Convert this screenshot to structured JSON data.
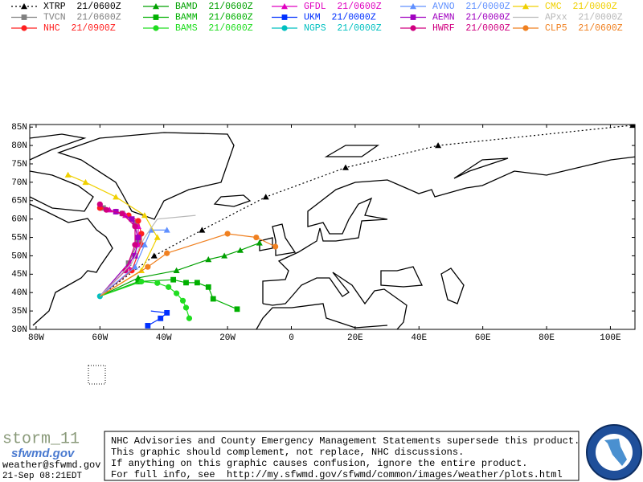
{
  "map": {
    "lonlim": [
      -82,
      107.7
    ],
    "latlim": [
      30,
      85.7
    ],
    "lon_ticks": [
      {
        "value": -80,
        "label": "80W"
      },
      {
        "value": -60,
        "label": "60W"
      },
      {
        "value": -40,
        "label": "40W"
      },
      {
        "value": -20,
        "label": "20W"
      },
      0,
      {
        "value": 20,
        "label": "20E"
      },
      {
        "value": 40,
        "label": "40E"
      },
      {
        "value": 60,
        "label": "60E"
      },
      {
        "value": 80,
        "label": "80E"
      },
      {
        "value": 100,
        "label": "100E"
      }
    ],
    "lat_ticks": [
      {
        "value": 85,
        "label": "85N"
      },
      {
        "value": 80,
        "label": "80N"
      },
      {
        "value": 75,
        "label": "75N"
      },
      {
        "value": 70,
        "label": "70N"
      },
      {
        "value": 65,
        "label": "65N"
      },
      {
        "value": 60,
        "label": "60N"
      },
      {
        "value": 55,
        "label": "55N"
      },
      {
        "value": 50,
        "label": "50N"
      },
      {
        "value": 45,
        "label": "45N"
      },
      {
        "value": 40,
        "label": "40N"
      },
      {
        "value": 35,
        "label": "35N"
      },
      {
        "value": 30,
        "label": "30N"
      }
    ],
    "models": [
      {
        "label": "XTRP  21/0600Z",
        "color": "#000000",
        "marker": "triangle",
        "dashed": true,
        "lon": [
          -60,
          -43,
          -28,
          -8,
          17,
          46,
          107
        ],
        "lat": [
          39,
          50,
          57,
          66,
          74,
          80,
          85.5
        ]
      },
      {
        "label": "TVCN  21/0600Z",
        "color": "#808080",
        "marker": "square",
        "dashed": false,
        "lon": [
          -60,
          -51,
          -48,
          -49,
          -53,
          -59
        ],
        "lat": [
          39,
          48,
          54,
          59,
          61.5,
          63
        ]
      },
      {
        "label": "NHC  21/0900Z",
        "color": "#ff2020",
        "marker": "circle",
        "dashed": false,
        "lon": [
          -60,
          -50,
          -47,
          -47,
          -48,
          -51,
          -55,
          -60
        ],
        "lat": [
          39,
          46,
          53,
          56,
          59.5,
          61,
          62,
          63
        ]
      },
      {
        "label": "BAMD  21/0600Z",
        "color": "#00a000",
        "marker": "triangle",
        "dashed": false,
        "lon": [
          -60,
          -48,
          -36,
          -26,
          -21,
          -16,
          -10
        ],
        "lat": [
          39,
          44,
          46,
          49,
          50,
          51.5,
          53.5
        ]
      },
      {
        "label": "BAMM  21/0600Z",
        "color": "#00b000",
        "marker": "square",
        "dashed": false,
        "lon": [
          -60,
          -48,
          -37,
          -33,
          -29.5,
          -26,
          -24.5,
          -17
        ],
        "lat": [
          39,
          43,
          43.5,
          42.7,
          42.7,
          41.5,
          38.3,
          35.5
        ]
      },
      {
        "label": "BAMS  21/0600Z",
        "color": "#20dd20",
        "marker": "circle",
        "dashed": false,
        "lon": [
          -60,
          -47,
          -42,
          -38.5,
          -36,
          -34,
          -33,
          -32
        ],
        "lat": [
          39,
          43,
          42.6,
          41.5,
          39.8,
          37.8,
          35.9,
          33
        ]
      },
      {
        "label": "GFDL  21/0600Z",
        "color": "#e000c0",
        "marker": "triangle",
        "dashed": false,
        "lon": [
          -60,
          -51,
          -48,
          -48,
          -52,
          -57
        ],
        "lat": [
          39,
          47,
          53,
          58,
          61,
          62.5
        ]
      },
      {
        "label": "UKM  21/0000Z",
        "color": "#0030ff",
        "marker": "square",
        "dashed": false,
        "lon": [
          -44,
          -39,
          -41,
          -45
        ],
        "lat": [
          35,
          34.5,
          33,
          31
        ]
      },
      {
        "label": "NGPS  21/0000Z",
        "color": "#00c0c0",
        "marker": "circle",
        "dashed": false,
        "lon": [
          -60
        ],
        "lat": [
          39
        ]
      },
      {
        "label": "AVNO  21/0000Z",
        "color": "#6090ff",
        "marker": "triangle",
        "dashed": false,
        "lon": [
          -60,
          -49,
          -46,
          -44,
          -39
        ],
        "lat": [
          39,
          47,
          53,
          57,
          57
        ]
      },
      {
        "label": "AEMN  21/0000Z",
        "color": "#a000c0",
        "marker": "square",
        "dashed": false,
        "lon": [
          -60,
          -49,
          -48,
          -50,
          -55
        ],
        "lat": [
          39,
          50,
          55,
          60,
          62
        ]
      },
      {
        "label": "HWRF  21/0000Z",
        "color": "#d00080",
        "marker": "circle",
        "dashed": false,
        "lon": [
          -60,
          -52,
          -49,
          -49,
          -53,
          -58,
          -60
        ],
        "lat": [
          39,
          46,
          53,
          58,
          61.5,
          62.5,
          64
        ]
      },
      {
        "label": "CMC  21/0000Z",
        "color": "#f0d000",
        "marker": "triangle",
        "dashed": false,
        "lon": [
          -60,
          -47,
          -42,
          -46,
          -55,
          -64.5,
          -70
        ],
        "lat": [
          39,
          46,
          55,
          61,
          66,
          70,
          72
        ]
      },
      {
        "label": "APxx  21/0000Z",
        "color": "#b8b8b8",
        "marker": "none",
        "dashed": false,
        "lon": [
          -60,
          -50,
          -46,
          -42,
          -30
        ],
        "lat": [
          39,
          48,
          55,
          60,
          61
        ]
      },
      {
        "label": "CLP5  21/0600Z",
        "color": "#f08020",
        "marker": "circle",
        "dashed": false,
        "lon": [
          -60,
          -45,
          -39,
          -20,
          -11,
          -5
        ],
        "lat": [
          39,
          47,
          50.7,
          56,
          55,
          52.5
        ]
      }
    ]
  },
  "footer": {
    "storm": "storm_11",
    "logo": "sfwmd.gov",
    "email": "weather@sfwmd.gov",
    "timestamp": "21-Sep 08:21EDT",
    "disclaimer": [
      "NHC Advisories and County Emergency Management Statements supersede this product.",
      "This graphic should complement, not replace, NHC discussions.",
      "If anything on this graphic causes confusion, ignore the entire product.",
      "For full info, see  http://my.sfwmd.gov/sfwmd/common/images/weather/plots.html"
    ]
  }
}
